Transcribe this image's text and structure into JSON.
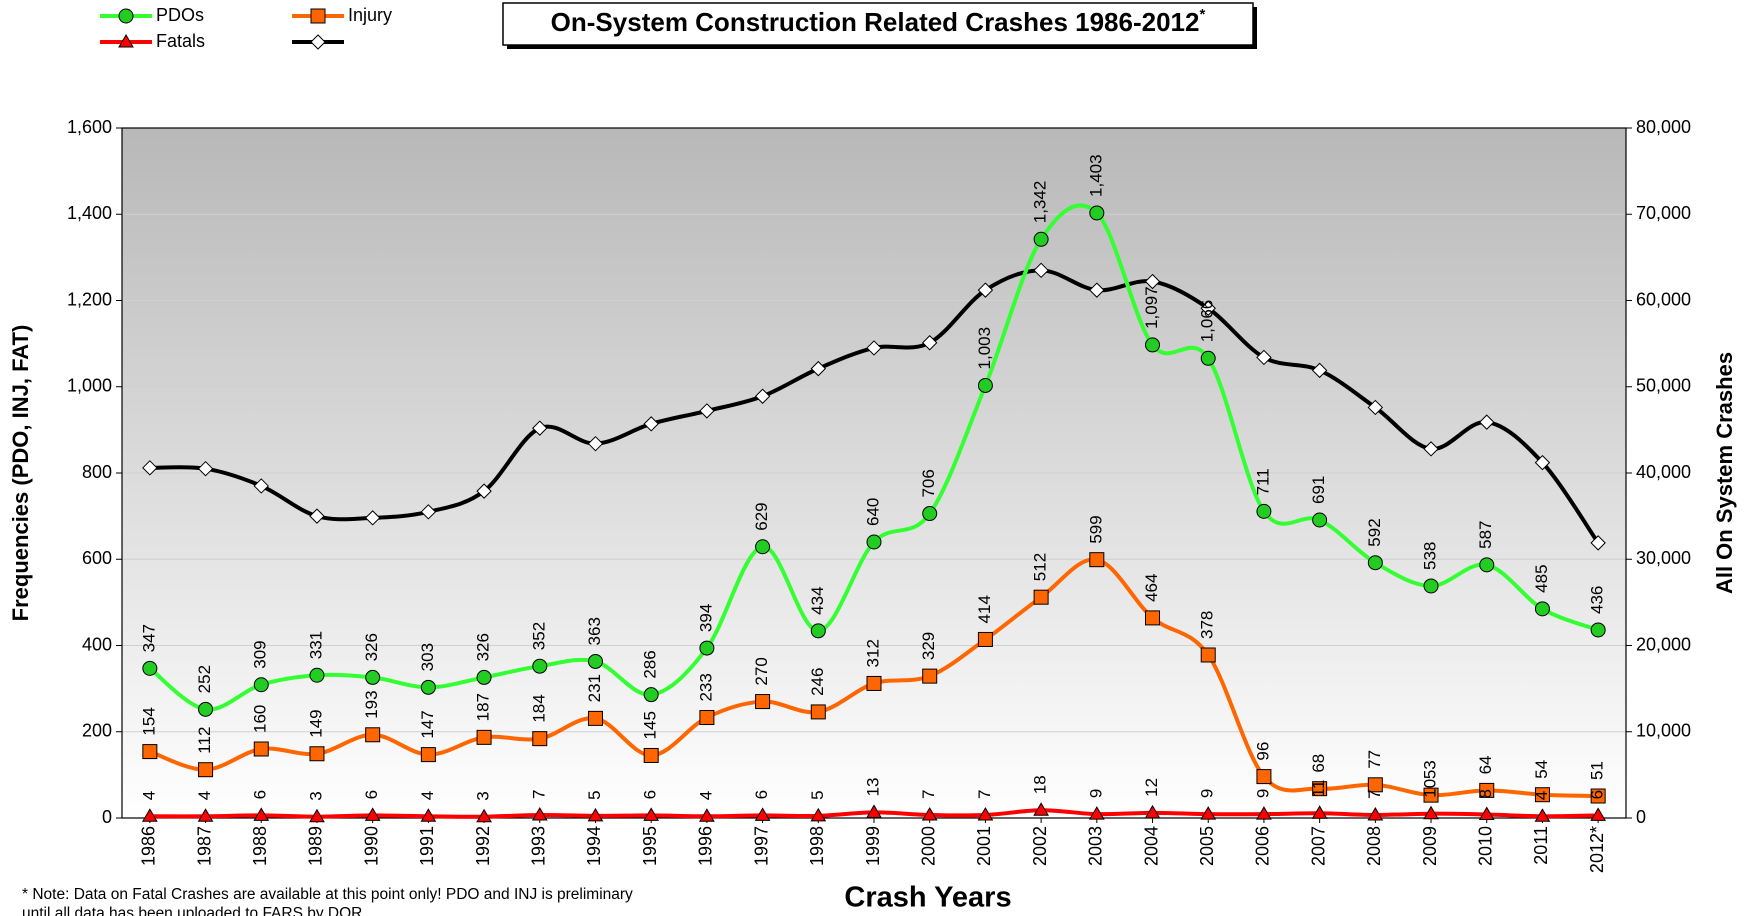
{
  "chart_data": {
    "type": "line",
    "title": "On-System Construction Related Crashes 1986-2012",
    "title_superscript": "*",
    "xlabel": "Crash Years",
    "ylabel": "Frequencies (PDO, INJ, FAT)",
    "y2label": "All On System Crashes",
    "notes": [
      "* Note: Data on Fatal Crashes are available at this point only!  PDO and INJ is preliminary",
      "until all data has been uploaded to FARS by DOR"
    ],
    "categories": [
      "1986",
      "1987",
      "1988",
      "1989",
      "1990",
      "1991",
      "1992",
      "1993",
      "1994",
      "1995",
      "1996",
      "1997",
      "1998",
      "1999",
      "2000",
      "2001",
      "2002",
      "2003",
      "2004",
      "2005",
      "2006",
      "2007",
      "2008",
      "2009",
      "2010",
      "2011",
      "2012*"
    ],
    "series": [
      {
        "name": "PDOs",
        "color": "#33ff33",
        "marker": "circle",
        "marker_color": "#22cc22",
        "values": [
          347,
          252,
          309,
          331,
          326,
          303,
          326,
          352,
          363,
          286,
          394,
          629,
          434,
          640,
          706,
          1003,
          1342,
          1403,
          1097,
          1066,
          711,
          691,
          592,
          538,
          587,
          485,
          436
        ],
        "value_labels": [
          "347",
          "252",
          "309",
          "331",
          "326",
          "303",
          "326",
          "352",
          "363",
          "286",
          "394",
          "629",
          "434",
          "640",
          "706",
          "1,003",
          "1,342",
          "1,403",
          "1,097",
          "1,066",
          "711",
          "691",
          "592",
          "538",
          "587",
          "485",
          "436"
        ]
      },
      {
        "name": "Injury",
        "color": "#ff6600",
        "marker": "square",
        "marker_color": "#ff6600",
        "values": [
          154,
          112,
          160,
          149,
          193,
          147,
          187,
          184,
          231,
          145,
          233,
          270,
          246,
          312,
          329,
          414,
          512,
          599,
          464,
          378,
          96,
          68,
          77,
          53,
          64,
          54,
          51
        ],
        "value_labels": [
          "154",
          "112",
          "160",
          "149",
          "193",
          "147",
          "187",
          "184",
          "231",
          "145",
          "233",
          "270",
          "246",
          "312",
          "329",
          "414",
          "512",
          "599",
          "464",
          "378",
          "96",
          "68",
          "77",
          "53",
          "64",
          "54",
          "51"
        ]
      },
      {
        "name": "Fatals",
        "color": "#ff0000",
        "marker": "triangle",
        "marker_color": "#ff0000",
        "values": [
          4,
          4,
          6,
          3,
          6,
          4,
          3,
          7,
          5,
          6,
          4,
          6,
          5,
          13,
          7,
          7,
          18,
          9,
          12,
          9,
          9,
          11,
          7,
          10,
          8,
          4,
          6
        ],
        "value_labels": [
          "4",
          "4",
          "6",
          "3",
          "6",
          "4",
          "3",
          "7",
          "5",
          "6",
          "4",
          "6",
          "5",
          "13",
          "7",
          "7",
          "18",
          "9",
          "12",
          "9",
          "9",
          "11",
          "7",
          "10",
          "8",
          "4",
          "6"
        ]
      },
      {
        "color": "#000000",
        "marker": "diamond",
        "marker_color": "#ffffff",
        "axis": "y2",
        "values": [
          40600,
          40500,
          38500,
          35000,
          34800,
          35500,
          37900,
          45200,
          43400,
          45700,
          47200,
          48900,
          52100,
          54500,
          55100,
          61200,
          63500,
          61200,
          62200,
          59100,
          53400,
          51900,
          47600,
          42800,
          45900,
          41200,
          31900
        ]
      }
    ],
    "ylim": [
      0,
      1600
    ],
    "yticks": [
      0,
      200,
      400,
      600,
      800,
      {
        "value": 1000,
        "label": "1,000"
      },
      {
        "value": 1200,
        "label": "1,200"
      },
      {
        "value": 1400,
        "label": "1,400"
      },
      {
        "value": 1600,
        "label": "1,600"
      }
    ],
    "y2lim": [
      0,
      80000
    ],
    "y2ticks": [
      0,
      {
        "value": 10000,
        "label": "10,000"
      },
      {
        "value": 20000,
        "label": "20,000"
      },
      {
        "value": 30000,
        "label": "30,000"
      },
      {
        "value": 40000,
        "label": "40,000"
      },
      {
        "value": 50000,
        "label": "50,000"
      },
      {
        "value": 60000,
        "label": "60,000"
      },
      {
        "value": 70000,
        "label": "70,000"
      },
      {
        "value": 80000,
        "label": "80,000"
      }
    ],
    "grid": true,
    "legend": "top-left"
  }
}
